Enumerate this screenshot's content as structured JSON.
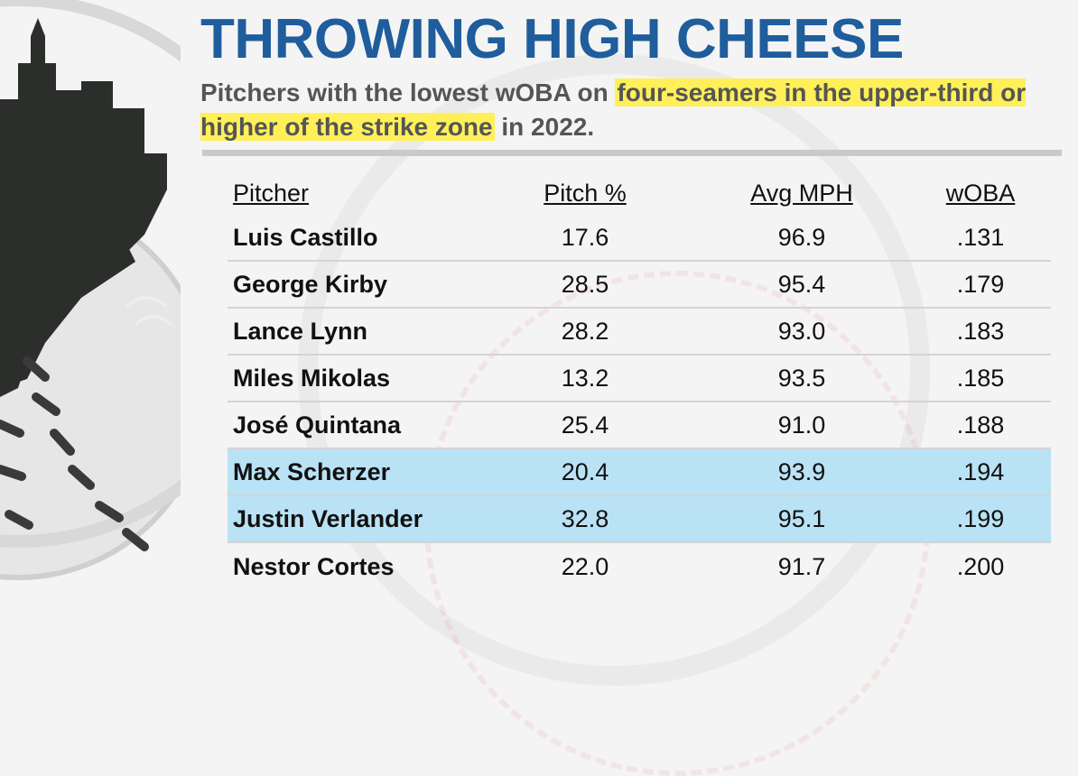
{
  "title": "THROWING HIGH CHEESE",
  "subtitle": {
    "part1": "Pitchers with the lowest wOBA on ",
    "highlight": "four-seamers in the upper-third or higher of the strike zone",
    "part2": " in 2022."
  },
  "colors": {
    "title": "#1f5d9c",
    "highlight_text": "#fff05a",
    "highlight_row": "#b9e2f5"
  },
  "chart_data": {
    "type": "table",
    "columns": [
      "Pitcher",
      "Pitch %",
      "Avg MPH",
      "wOBA"
    ],
    "rows": [
      {
        "pitcher": "Luis Castillo",
        "pitch_pct": "17.6",
        "avg_mph": "96.9",
        "woba": ".131",
        "highlight": false
      },
      {
        "pitcher": "George Kirby",
        "pitch_pct": "28.5",
        "avg_mph": "95.4",
        "woba": ".179",
        "highlight": false
      },
      {
        "pitcher": "Lance Lynn",
        "pitch_pct": "28.2",
        "avg_mph": "93.0",
        "woba": ".183",
        "highlight": false
      },
      {
        "pitcher": "Miles Mikolas",
        "pitch_pct": "13.2",
        "avg_mph": "93.5",
        "woba": ".185",
        "highlight": false
      },
      {
        "pitcher": "José Quintana",
        "pitch_pct": "25.4",
        "avg_mph": "91.0",
        "woba": ".188",
        "highlight": false
      },
      {
        "pitcher": "Max Scherzer",
        "pitch_pct": "20.4",
        "avg_mph": "93.9",
        "woba": ".194",
        "highlight": true
      },
      {
        "pitcher": "Justin Verlander",
        "pitch_pct": "32.8",
        "avg_mph": "95.1",
        "woba": ".199",
        "highlight": true
      },
      {
        "pitcher": "Nestor Cortes",
        "pitch_pct": "22.0",
        "avg_mph": "91.7",
        "woba": ".200",
        "highlight": false
      }
    ]
  }
}
